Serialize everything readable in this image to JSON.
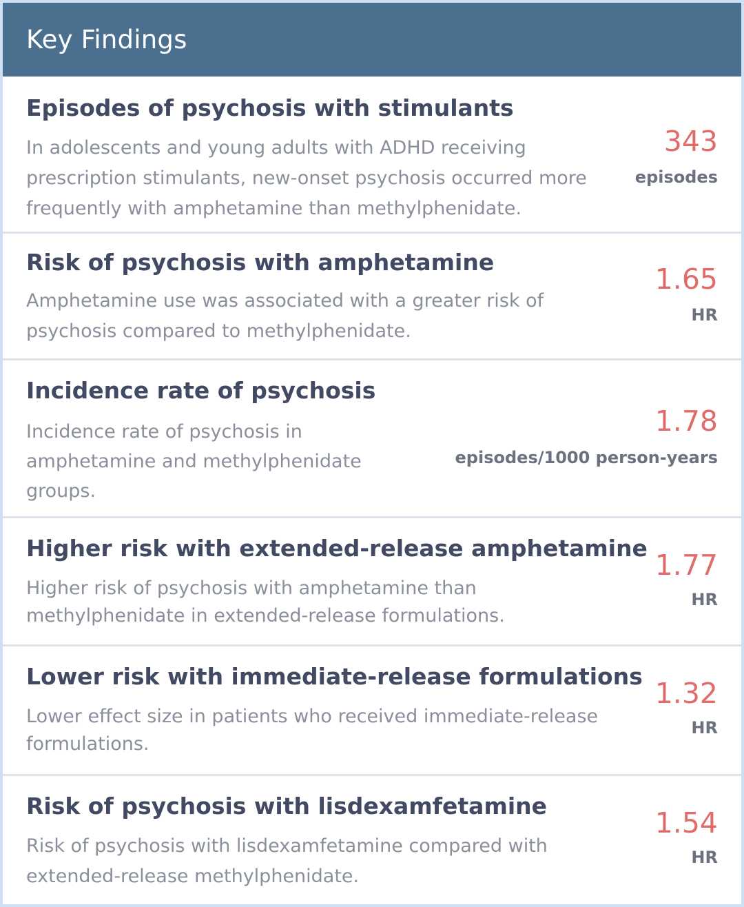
{
  "panel": {
    "title": "Key Findings"
  },
  "findings": [
    {
      "title": "Episodes of psychosis with stimulants",
      "description": "In adolescents and young adults with ADHD receiving prescription stimulants, new-onset psychosis occurred more frequently with amphetamine than methylphenidate.",
      "value": "343",
      "unit": "episodes"
    },
    {
      "title": "Risk of psychosis with amphetamine",
      "description": "Amphetamine use was associated with a greater risk of psychosis compared to methylphenidate.",
      "value": "1.65",
      "unit": "HR"
    },
    {
      "title": "Incidence rate of psychosis",
      "description": "Incidence rate of psychosis in amphetamine and methylphenidate groups.",
      "value": "1.78",
      "unit": "episodes/1000 person-years"
    },
    {
      "title": "Higher risk with extended-release amphetamine",
      "description": "Higher risk of psychosis with amphetamine than methylphenidate in extended-release formulations.",
      "value": "1.77",
      "unit": "HR"
    },
    {
      "title": "Lower risk with immediate-release formulations",
      "description": "Lower effect size in patients who received immediate-release formulations.",
      "value": "1.32",
      "unit": "HR"
    },
    {
      "title": "Risk of psychosis with lisdexamfetamine",
      "description": "Risk of psychosis with lisdexamfetamine compared with extended-release methylphenidate.",
      "value": "1.54",
      "unit": "HR"
    }
  ],
  "colors": {
    "header_bg": "#4b708f",
    "value_accent": "#e06b6b",
    "title_text": "#424a63",
    "description_text": "#8a8f9c"
  }
}
